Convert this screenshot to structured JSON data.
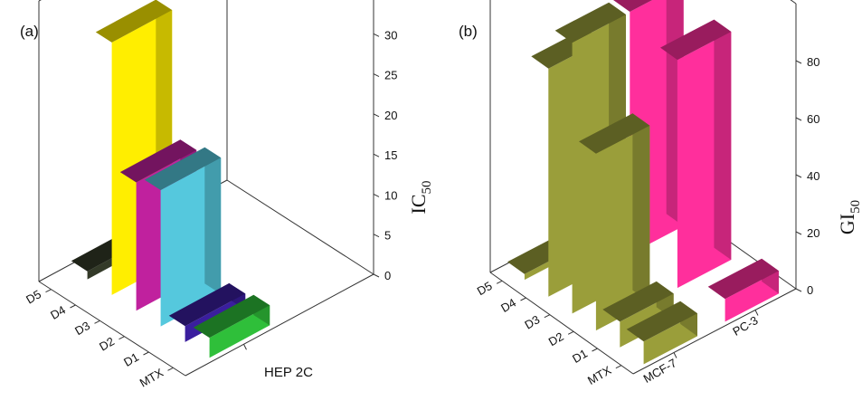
{
  "chart_data": [
    {
      "panel_label": "(a)",
      "type": "bar",
      "style": "3d",
      "categories": [
        "MTX",
        "D1",
        "D2",
        "D3",
        "D4",
        "D5"
      ],
      "series": [
        {
          "name": "HEP 2C",
          "values": [
            2.5,
            2.0,
            17.0,
            16.0,
            31.5,
            1.0
          ],
          "colors": [
            "#2fbf3a",
            "#3a1e9e",
            "#55c8dd",
            "#c0219e",
            "#ffee00",
            "#333a28"
          ]
        }
      ],
      "zlabel": "IC",
      "zlabel_sub": "50",
      "ztick_labels": [
        "0",
        "5",
        "10",
        "15",
        "20",
        "25",
        "30"
      ],
      "zlim": [
        0,
        35
      ],
      "grid": false
    },
    {
      "panel_label": "(b)",
      "type": "bar",
      "style": "3d",
      "categories": [
        "MTX",
        "D1",
        "D2",
        "D3",
        "D4",
        "D5"
      ],
      "series": [
        {
          "name": "MCF-7",
          "values": [
            8,
            9,
            62,
            95,
            80,
            2
          ],
          "color": "#9a9e3a"
        },
        {
          "name": "PC-3",
          "values": [
            8,
            0,
            80,
            0,
            85,
            0
          ],
          "color": "#ff2f9c"
        }
      ],
      "zlabel": "GI",
      "zlabel_sub": "50",
      "ztick_labels": [
        "0",
        "20",
        "40",
        "60",
        "80"
      ],
      "zlim": [
        0,
        100
      ],
      "grid": false
    }
  ]
}
